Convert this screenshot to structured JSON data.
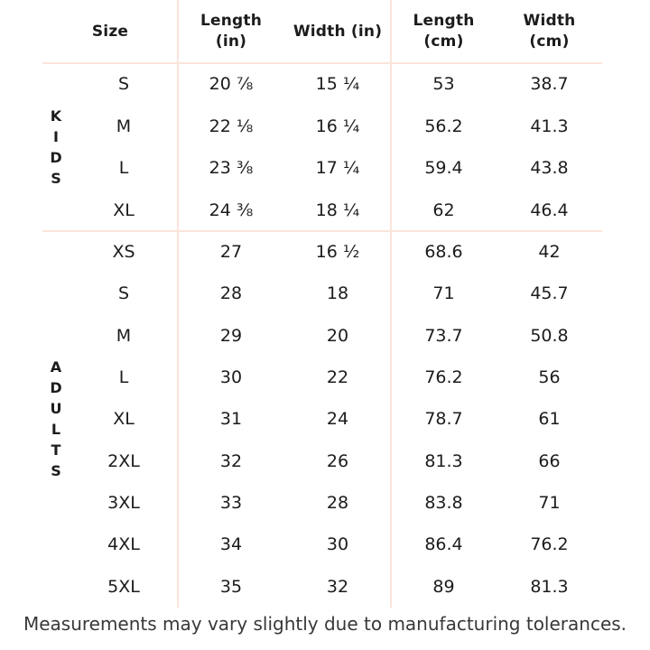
{
  "colors": {
    "background": "#ffffff",
    "line": "#fbe4da",
    "text": "#1c1c1e",
    "footnote_text": "#38383a"
  },
  "header": {
    "size_label": "Size",
    "columns_display": [
      {
        "key": "length-in",
        "lines": [
          "Length",
          "(in)"
        ]
      },
      {
        "key": "width-in",
        "lines": [
          "Width (in)"
        ]
      },
      {
        "key": "length-cm",
        "lines": [
          "Length",
          "(cm)"
        ]
      },
      {
        "key": "width-cm",
        "lines": [
          "Width",
          "(cm)"
        ]
      }
    ]
  },
  "chart_data": {
    "type": "table",
    "columns": [
      "Size",
      "Length (in)",
      "Width (in)",
      "Length (cm)",
      "Width (cm)"
    ],
    "groups": [
      {
        "name": "KIDS",
        "rows": [
          [
            "S",
            "20 ⅞",
            "15 ¼",
            "53",
            "38.7"
          ],
          [
            "M",
            "22 ⅛",
            "16 ¼",
            "56.2",
            "41.3"
          ],
          [
            "L",
            "23 ⅜",
            "17 ¼",
            "59.4",
            "43.8"
          ],
          [
            "XL",
            "24 ⅜",
            "18 ¼",
            "62",
            "46.4"
          ]
        ]
      },
      {
        "name": "ADULTS",
        "rows": [
          [
            "XS",
            "27",
            "16 ½",
            "68.6",
            "42"
          ],
          [
            "S",
            "28",
            "18",
            "71",
            "45.7"
          ],
          [
            "M",
            "29",
            "20",
            "73.7",
            "50.8"
          ],
          [
            "L",
            "30",
            "22",
            "76.2",
            "56"
          ],
          [
            "XL",
            "31",
            "24",
            "78.7",
            "61"
          ],
          [
            "2XL",
            "32",
            "26",
            "81.3",
            "66"
          ],
          [
            "3XL",
            "33",
            "28",
            "83.8",
            "71"
          ],
          [
            "4XL",
            "34",
            "30",
            "86.4",
            "76.2"
          ],
          [
            "5XL",
            "35",
            "32",
            "89",
            "81.3"
          ]
        ]
      }
    ],
    "footnote": "Measurements may vary slightly due to manufacturing tolerances."
  }
}
